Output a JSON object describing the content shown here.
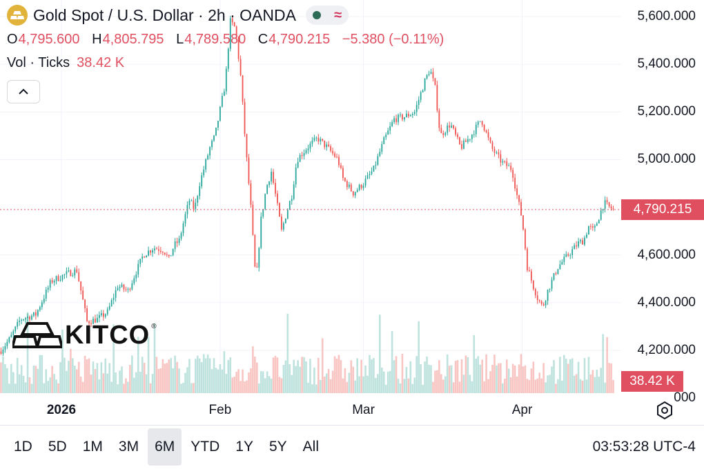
{
  "header": {
    "title": "Gold Spot / U.S. Dollar · 2h · OANDA",
    "ohlc": {
      "o_label": "O",
      "o_value": "4,795.600",
      "h_label": "H",
      "h_value": "4,805.795",
      "l_label": "L",
      "l_value": "4,789.580",
      "c_label": "C",
      "c_value": "4,790.215",
      "change": "−5.380 (−0.11%)"
    },
    "volume_label": "Vol · Ticks",
    "volume_value": "38.42 K"
  },
  "logo": {
    "text": "KITCO",
    "mark": "®"
  },
  "time_ranges": [
    "1D",
    "5D",
    "1M",
    "3M",
    "6M",
    "YTD",
    "1Y",
    "5Y",
    "All"
  ],
  "active_range": "6M",
  "clock": "03:53:28 UTC-4",
  "colors": {
    "up": "#26a69a",
    "down": "#ef5350",
    "accent": "#e04f5f",
    "grid": "#f0f3fa",
    "vol_up": "#a8d8d2",
    "vol_down": "#f5b1ae",
    "coin": "#e2b33a"
  },
  "chart_data": {
    "type": "candlestick",
    "title": "Gold Spot / U.S. Dollar · 2h · OANDA",
    "y_ticks": [
      {
        "value": 5600,
        "label": "5,600.000"
      },
      {
        "value": 5400,
        "label": "5,400.000"
      },
      {
        "value": 5200,
        "label": "5,200.000"
      },
      {
        "value": 5000,
        "label": "5,000.000"
      },
      {
        "value": 4600,
        "label": "4,600.000"
      },
      {
        "value": 4400,
        "label": "4,400.000"
      },
      {
        "value": 4200,
        "label": "4,200.000"
      }
    ],
    "y_partial_label": "000",
    "ylim": [
      4020,
      5670
    ],
    "last_price": 4790.215,
    "last_price_label": "4,790.215",
    "volume_tag": "38.42 K",
    "x_ticks": [
      {
        "label": "2026",
        "bold": true,
        "date": "2026-01-01"
      },
      {
        "label": "Feb",
        "bold": false,
        "date": "2026-02-01"
      },
      {
        "label": "Mar",
        "bold": false,
        "date": "2026-03-01"
      },
      {
        "label": "Apr",
        "bold": false,
        "date": "2026-04-01"
      }
    ],
    "x_range": [
      "2025-12-20",
      "2026-04-19"
    ],
    "close_path": [
      [
        "2025-12-20",
        4195
      ],
      [
        "2025-12-22",
        4250
      ],
      [
        "2025-12-24",
        4330
      ],
      [
        "2025-12-27",
        4350
      ],
      [
        "2025-12-30",
        4490
      ],
      [
        "2026-01-02",
        4520
      ],
      [
        "2026-01-04",
        4535
      ],
      [
        "2026-01-05",
        4430
      ],
      [
        "2026-01-06",
        4320
      ],
      [
        "2026-01-08",
        4330
      ],
      [
        "2026-01-10",
        4360
      ],
      [
        "2026-01-12",
        4470
      ],
      [
        "2026-01-14",
        4450
      ],
      [
        "2026-01-15",
        4500
      ],
      [
        "2026-01-17",
        4600
      ],
      [
        "2026-01-19",
        4630
      ],
      [
        "2026-01-21",
        4620
      ],
      [
        "2026-01-22",
        4580
      ],
      [
        "2026-01-23",
        4640
      ],
      [
        "2026-01-24",
        4660
      ],
      [
        "2026-01-25",
        4750
      ],
      [
        "2026-01-26",
        4830
      ],
      [
        "2026-01-27",
        4790
      ],
      [
        "2026-01-28",
        4900
      ],
      [
        "2026-01-30",
        5050
      ],
      [
        "2026-01-31",
        5100
      ],
      [
        "2026-02-02",
        5320
      ],
      [
        "2026-02-03",
        5580
      ],
      [
        "2026-02-04",
        5550
      ],
      [
        "2026-02-05",
        5350
      ],
      [
        "2026-02-06",
        5050
      ],
      [
        "2026-02-07",
        4800
      ],
      [
        "2026-02-08",
        4480
      ],
      [
        "2026-02-09",
        4750
      ],
      [
        "2026-02-10",
        4880
      ],
      [
        "2026-02-11",
        4950
      ],
      [
        "2026-02-12",
        4830
      ],
      [
        "2026-02-13",
        4700
      ],
      [
        "2026-02-14",
        4780
      ],
      [
        "2026-02-15",
        4850
      ],
      [
        "2026-02-16",
        5000
      ],
      [
        "2026-02-18",
        5050
      ],
      [
        "2026-02-20",
        5090
      ],
      [
        "2026-02-22",
        5050
      ],
      [
        "2026-02-24",
        5000
      ],
      [
        "2026-02-25",
        4920
      ],
      [
        "2026-02-27",
        4860
      ],
      [
        "2026-03-01",
        4900
      ],
      [
        "2026-03-03",
        4960
      ],
      [
        "2026-03-05",
        5080
      ],
      [
        "2026-03-07",
        5170
      ],
      [
        "2026-03-09",
        5180
      ],
      [
        "2026-03-11",
        5200
      ],
      [
        "2026-03-13",
        5330
      ],
      [
        "2026-03-14",
        5380
      ],
      [
        "2026-03-15",
        5300
      ],
      [
        "2026-03-16",
        5100
      ],
      [
        "2026-03-18",
        5150
      ],
      [
        "2026-03-20",
        5050
      ],
      [
        "2026-03-22",
        5100
      ],
      [
        "2026-03-24",
        5170
      ],
      [
        "2026-03-26",
        5050
      ],
      [
        "2026-03-28",
        4990
      ],
      [
        "2026-03-30",
        4960
      ],
      [
        "2026-03-31",
        4850
      ],
      [
        "2026-04-01",
        4750
      ],
      [
        "2026-04-02",
        4550
      ],
      [
        "2026-04-03",
        4480
      ],
      [
        "2026-04-04",
        4420
      ],
      [
        "2026-04-05",
        4380
      ],
      [
        "2026-04-06",
        4450
      ],
      [
        "2026-04-08",
        4550
      ],
      [
        "2026-04-10",
        4600
      ],
      [
        "2026-04-12",
        4650
      ],
      [
        "2026-04-13",
        4660
      ],
      [
        "2026-04-14",
        4720
      ],
      [
        "2026-04-15",
        4700
      ],
      [
        "2026-04-16",
        4760
      ],
      [
        "2026-04-17",
        4820
      ],
      [
        "2026-04-18",
        4800
      ],
      [
        "2026-04-19",
        4790
      ]
    ]
  }
}
